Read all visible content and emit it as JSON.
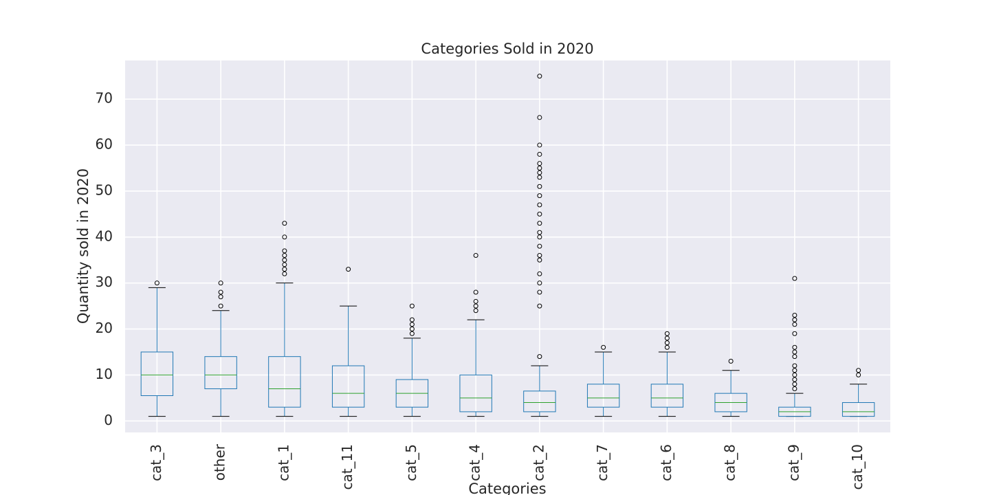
{
  "chart_data": {
    "type": "box",
    "title": "Categories Sold in 2020",
    "x_label": "Categories",
    "y_label": "Quantity sold in 2020",
    "categories": [
      "cat_3",
      "other",
      "cat_1",
      "cat_11",
      "cat_5",
      "cat_4",
      "cat_2",
      "cat_7",
      "cat_6",
      "cat_8",
      "cat_9",
      "cat_10"
    ],
    "boxes": [
      {
        "whislo": 1,
        "q1": 5.5,
        "med": 10,
        "q3": 15,
        "whishi": 29,
        "fliers": [
          30
        ]
      },
      {
        "whislo": 1,
        "q1": 7,
        "med": 10,
        "q3": 14,
        "whishi": 24,
        "fliers": [
          25,
          27,
          28,
          30
        ]
      },
      {
        "whislo": 1,
        "q1": 3,
        "med": 7,
        "q3": 14,
        "whishi": 30,
        "fliers": [
          32,
          33,
          34,
          35,
          36,
          37,
          40,
          43
        ]
      },
      {
        "whislo": 1,
        "q1": 3,
        "med": 6,
        "q3": 12,
        "whishi": 25,
        "fliers": [
          33
        ]
      },
      {
        "whislo": 1,
        "q1": 3,
        "med": 6,
        "q3": 9,
        "whishi": 18,
        "fliers": [
          19,
          20,
          21,
          22,
          25
        ]
      },
      {
        "whislo": 1,
        "q1": 2,
        "med": 5,
        "q3": 10,
        "whishi": 22,
        "fliers": [
          24,
          25,
          26,
          28,
          36
        ]
      },
      {
        "whislo": 1,
        "q1": 2,
        "med": 4,
        "q3": 6.5,
        "whishi": 12,
        "fliers": [
          14,
          25,
          28,
          30,
          32,
          35,
          36,
          38,
          40,
          41,
          43,
          45,
          47,
          49,
          51,
          53,
          54,
          55,
          56,
          58,
          60,
          66,
          75
        ]
      },
      {
        "whislo": 1,
        "q1": 3,
        "med": 5,
        "q3": 8,
        "whishi": 15,
        "fliers": [
          16
        ]
      },
      {
        "whislo": 1,
        "q1": 3,
        "med": 5,
        "q3": 8,
        "whishi": 15,
        "fliers": [
          16,
          17,
          18,
          19
        ]
      },
      {
        "whislo": 1,
        "q1": 2,
        "med": 4,
        "q3": 6,
        "whishi": 11,
        "fliers": [
          13
        ]
      },
      {
        "whislo": 1,
        "q1": 1,
        "med": 2,
        "q3": 3,
        "whishi": 6,
        "fliers": [
          7,
          8,
          9,
          10,
          11,
          12,
          14,
          15,
          16,
          19,
          21,
          22,
          23,
          31
        ]
      },
      {
        "whislo": 1,
        "q1": 1,
        "med": 2,
        "q3": 4,
        "whishi": 8,
        "fliers": [
          10,
          11
        ]
      }
    ],
    "box_color": "#1f77b4",
    "median_color": "#2ca02c",
    "ylim": [
      -2.5,
      78.4
    ],
    "yticks": [
      0,
      10,
      20,
      30,
      40,
      50,
      60,
      70
    ],
    "grid": true
  }
}
